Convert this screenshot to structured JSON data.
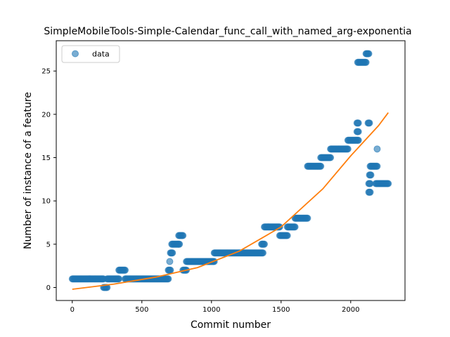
{
  "chart_data": {
    "type": "scatter",
    "title": "SimpleMobileTools-Simple-Calendar_func_call_with_named_arg-exponentia",
    "xlabel": "Commit number",
    "ylabel": "Number of instance of a feature",
    "xlim": [
      -115,
      2390
    ],
    "ylim": [
      -1.5,
      28.5
    ],
    "xticks": [
      0,
      500,
      1000,
      1500,
      2000
    ],
    "yticks": [
      0,
      5,
      10,
      15,
      20,
      25
    ],
    "grid": false,
    "legend": {
      "placement": "top-left",
      "entries": [
        "data"
      ]
    },
    "colors": {
      "data": "#1f77b4",
      "fit": "#ff7f0e"
    },
    "series": [
      {
        "name": "data",
        "kind": "points",
        "segments": [
          {
            "x0": 0,
            "x1": 225,
            "y": 1
          },
          {
            "x0": 225,
            "x1": 250,
            "y": 0
          },
          {
            "x0": 250,
            "x1": 335,
            "y": 1
          },
          {
            "x0": 335,
            "x1": 380,
            "y": 2
          },
          {
            "x0": 380,
            "x1": 690,
            "y": 1
          },
          {
            "x0": 690,
            "x1": 705,
            "y": 2
          },
          {
            "x0": 705,
            "x1": 720,
            "y": 4
          },
          {
            "x0": 715,
            "x1": 770,
            "y": 5
          },
          {
            "x0": 765,
            "x1": 795,
            "y": 6
          },
          {
            "x0": 795,
            "x1": 820,
            "y": 2
          },
          {
            "x0": 820,
            "x1": 1020,
            "y": 3
          },
          {
            "x0": 1020,
            "x1": 1370,
            "y": 4
          },
          {
            "x0": 1360,
            "x1": 1380,
            "y": 5
          },
          {
            "x0": 1380,
            "x1": 1490,
            "y": 7
          },
          {
            "x0": 1490,
            "x1": 1545,
            "y": 6
          },
          {
            "x0": 1545,
            "x1": 1600,
            "y": 7
          },
          {
            "x0": 1600,
            "x1": 1690,
            "y": 8
          },
          {
            "x0": 1690,
            "x1": 1785,
            "y": 14
          },
          {
            "x0": 1785,
            "x1": 1855,
            "y": 15
          },
          {
            "x0": 1855,
            "x1": 1980,
            "y": 16
          },
          {
            "x0": 1980,
            "x1": 2055,
            "y": 17
          },
          {
            "x0": 2045,
            "x1": 2055,
            "y": 18
          },
          {
            "x0": 2045,
            "x1": 2055,
            "y": 19
          },
          {
            "x0": 2050,
            "x1": 2110,
            "y": 26
          },
          {
            "x0": 2110,
            "x1": 2130,
            "y": 27
          },
          {
            "x0": 2125,
            "x1": 2135,
            "y": 19
          },
          {
            "x0": 2130,
            "x1": 2140,
            "y": 12
          },
          {
            "x0": 2130,
            "x1": 2140,
            "y": 11
          },
          {
            "x0": 2135,
            "x1": 2145,
            "y": 13
          },
          {
            "x0": 2140,
            "x1": 2190,
            "y": 14
          },
          {
            "x0": 2180,
            "x1": 2270,
            "y": 12
          }
        ],
        "points": [
          {
            "x": 700,
            "y": 3
          },
          {
            "x": 2190,
            "y": 16
          }
        ]
      },
      {
        "name": "",
        "kind": "line",
        "x": [
          0,
          300,
          600,
          900,
          1200,
          1500,
          1800,
          2000,
          2200,
          2270
        ],
        "y": [
          -0.2,
          0.4,
          1.2,
          2.3,
          4.2,
          7.0,
          11.4,
          15.2,
          18.7,
          20.2
        ]
      }
    ]
  }
}
